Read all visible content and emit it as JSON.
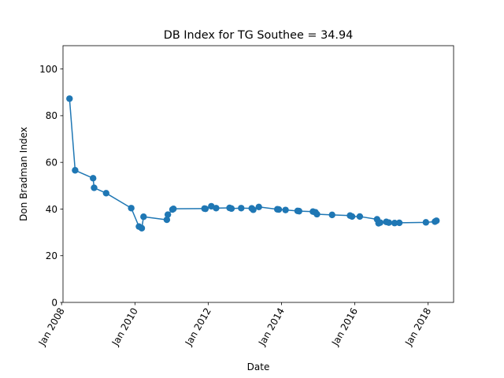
{
  "chart_data": {
    "type": "line",
    "title": "DB Index for TG Southee = 34.94",
    "xlabel": "Date",
    "ylabel": "Don Bradman Index",
    "xlim": [
      "2008-01-15",
      "2018-09-12"
    ],
    "ylim": [
      0,
      110
    ],
    "xticks": [
      {
        "date": "2008-01-01",
        "label": "Jan 2008"
      },
      {
        "date": "2010-01-01",
        "label": "Jan 2010"
      },
      {
        "date": "2012-01-01",
        "label": "Jan 2012"
      },
      {
        "date": "2014-01-01",
        "label": "Jan 2014"
      },
      {
        "date": "2016-01-01",
        "label": "Jan 2016"
      },
      {
        "date": "2018-01-01",
        "label": "Jan 2018"
      }
    ],
    "yticks": [
      0,
      20,
      40,
      60,
      80,
      100
    ],
    "color": "#1f77b4",
    "grid": false,
    "series": [
      {
        "x": [
          "2008-03-20",
          "2008-05-15",
          "2008-11-10",
          "2008-11-20",
          "2009-03-20",
          "2009-11-25",
          "2010-02-10",
          "2010-03-10",
          "2010-03-28",
          "2010-11-15",
          "2010-11-25",
          "2011-01-10",
          "2011-01-20",
          "2011-11-25",
          "2011-12-05",
          "2012-02-01",
          "2012-03-20",
          "2012-08-01",
          "2012-08-20",
          "2012-11-25",
          "2013-03-10",
          "2013-03-25",
          "2013-05-20",
          "2013-11-20",
          "2013-12-05",
          "2014-02-10",
          "2014-06-10",
          "2014-06-25",
          "2014-11-10",
          "2014-12-05",
          "2014-12-20",
          "2015-05-20",
          "2015-11-15",
          "2015-12-05",
          "2016-02-20",
          "2016-08-10",
          "2016-08-25",
          "2016-09-10",
          "2016-11-10",
          "2016-12-05",
          "2017-02-01",
          "2017-03-20",
          "2017-12-10",
          "2018-03-10",
          "2018-03-25"
        ],
        "y": [
          87.3,
          56.6,
          53.2,
          49.1,
          46.8,
          40.4,
          32.5,
          31.8,
          36.7,
          35.4,
          37.6,
          39.8,
          40.1,
          40.2,
          40.1,
          41.2,
          40.4,
          40.5,
          40.2,
          40.4,
          40.3,
          39.7,
          40.9,
          39.9,
          39.8,
          39.6,
          39.2,
          39.1,
          38.9,
          38.6,
          37.8,
          37.5,
          37.2,
          36.8,
          36.8,
          35.6,
          33.9,
          34.2,
          34.5,
          34.2,
          34.0,
          34.1,
          34.3,
          34.6,
          35.0
        ]
      }
    ]
  }
}
